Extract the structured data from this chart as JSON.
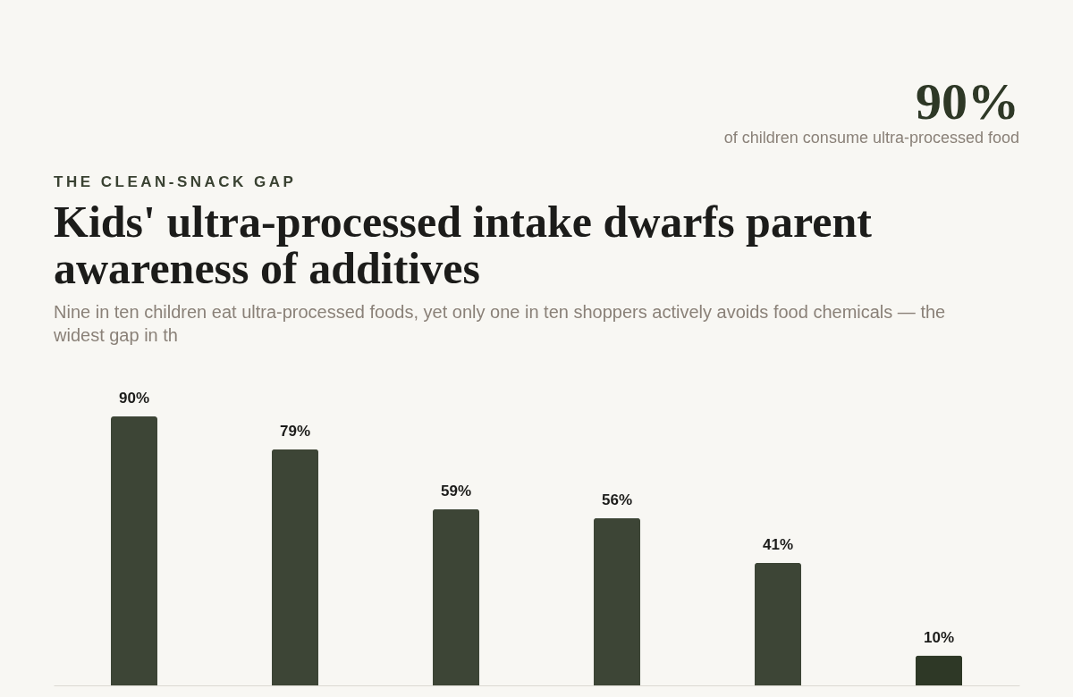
{
  "chart_data": {
    "type": "bar",
    "title": "Kids' ultra-processed intake dwarfs parent awareness of additives",
    "subtitle": "Nine in ten children eat ultra-processed foods, yet only one in ten shoppers actively avoids food chemicals — the widest gap in th",
    "annotations": [
      "THE CLEAN-SNACK GAP",
      "90%",
      "of children consume ultra-processed food"
    ],
    "categories": [
      null,
      null,
      null,
      null,
      null,
      null
    ],
    "values": [
      90,
      79,
      59,
      56,
      41,
      10
    ],
    "colors": [
      "#3d4536",
      "#3d4536",
      "#3d4536",
      "#3d4536",
      "#3d4536",
      "#2e3826"
    ],
    "value_labels": [
      "90%",
      "79%",
      "59%",
      "56%",
      "41%",
      "10%"
    ]
  }
}
